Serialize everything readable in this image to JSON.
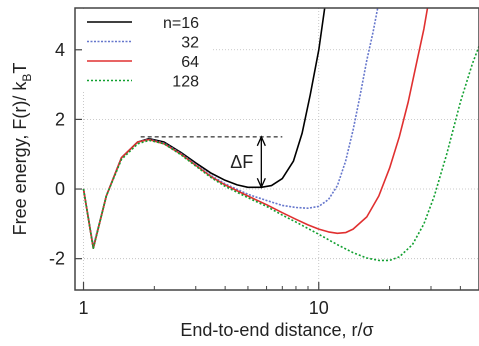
{
  "chart_data": {
    "type": "line",
    "xlabel": "End-to-end distance, r/σ",
    "ylabel_main": "Free energy, F(r)/ k",
    "ylabel_sub": "B",
    "ylabel_tail": "T",
    "x_scale": "log",
    "xlim": [
      0.92,
      48
    ],
    "ylim": [
      -2.9,
      5.2
    ],
    "x_ticks": [
      {
        "value": 1,
        "label": "1"
      },
      {
        "value": 10,
        "label": "10"
      }
    ],
    "y_ticks": [
      {
        "value": -2,
        "label": "-2"
      },
      {
        "value": 0,
        "label": "0"
      },
      {
        "value": 2,
        "label": "2"
      },
      {
        "value": 4,
        "label": "4"
      }
    ],
    "grid": true,
    "legend_position": "top-left",
    "annotation": {
      "label": "ΔF",
      "x_start": 1.75,
      "x_end": 7.0,
      "arrow_x": 5.7,
      "y_top": 1.5,
      "y_bottom": 0.05
    },
    "series": [
      {
        "name": "n=16",
        "color": "#000000",
        "dash": "none",
        "points": [
          [
            1.0,
            0
          ],
          [
            1.1,
            -1.7
          ],
          [
            1.25,
            -0.2
          ],
          [
            1.45,
            0.9
          ],
          [
            1.7,
            1.35
          ],
          [
            1.9,
            1.45
          ],
          [
            2.2,
            1.35
          ],
          [
            2.6,
            1.05
          ],
          [
            3.0,
            0.75
          ],
          [
            3.5,
            0.45
          ],
          [
            4.0,
            0.25
          ],
          [
            4.5,
            0.12
          ],
          [
            5.0,
            0.05
          ],
          [
            5.7,
            0.05
          ],
          [
            6.3,
            0.1
          ],
          [
            7.0,
            0.3
          ],
          [
            7.8,
            0.8
          ],
          [
            8.5,
            1.6
          ],
          [
            9.2,
            2.7
          ],
          [
            10.0,
            4.0
          ],
          [
            10.6,
            5.2
          ]
        ]
      },
      {
        "name": "32",
        "color": "#6677cc",
        "dash": "2,1.5",
        "points": [
          [
            1.0,
            0
          ],
          [
            1.1,
            -1.65
          ],
          [
            1.25,
            -0.2
          ],
          [
            1.45,
            0.9
          ],
          [
            1.7,
            1.35
          ],
          [
            1.9,
            1.43
          ],
          [
            2.2,
            1.32
          ],
          [
            2.6,
            1.02
          ],
          [
            3.0,
            0.7
          ],
          [
            3.5,
            0.38
          ],
          [
            4.0,
            0.15
          ],
          [
            5.0,
            -0.15
          ],
          [
            6.0,
            -0.33
          ],
          [
            7.0,
            -0.47
          ],
          [
            8.0,
            -0.53
          ],
          [
            9.0,
            -0.55
          ],
          [
            10.0,
            -0.5
          ],
          [
            11.0,
            -0.3
          ],
          [
            12.0,
            0.1
          ],
          [
            13.0,
            0.8
          ],
          [
            14.0,
            1.7
          ],
          [
            15.0,
            2.7
          ],
          [
            16.0,
            3.7
          ],
          [
            17.0,
            4.5
          ],
          [
            17.8,
            5.2
          ]
        ]
      },
      {
        "name": "64",
        "color": "#e03030",
        "dash": "none",
        "points": [
          [
            1.0,
            0
          ],
          [
            1.1,
            -1.7
          ],
          [
            1.25,
            -0.2
          ],
          [
            1.45,
            0.9
          ],
          [
            1.7,
            1.35
          ],
          [
            1.9,
            1.42
          ],
          [
            2.2,
            1.3
          ],
          [
            2.6,
            1.0
          ],
          [
            3.0,
            0.68
          ],
          [
            3.5,
            0.35
          ],
          [
            4.0,
            0.12
          ],
          [
            5.0,
            -0.2
          ],
          [
            6.0,
            -0.45
          ],
          [
            7.0,
            -0.68
          ],
          [
            8.0,
            -0.87
          ],
          [
            9.0,
            -1.03
          ],
          [
            10.0,
            -1.15
          ],
          [
            11.0,
            -1.23
          ],
          [
            12.0,
            -1.27
          ],
          [
            13.0,
            -1.25
          ],
          [
            14.0,
            -1.15
          ],
          [
            16.0,
            -0.8
          ],
          [
            18.0,
            -0.2
          ],
          [
            20.0,
            0.6
          ],
          [
            22.0,
            1.5
          ],
          [
            24.0,
            2.5
          ],
          [
            26.0,
            3.6
          ],
          [
            28.0,
            4.6
          ],
          [
            29.0,
            5.2
          ]
        ]
      },
      {
        "name": "128",
        "color": "#11a030",
        "dash": "2,2",
        "points": [
          [
            1.0,
            0
          ],
          [
            1.1,
            -1.7
          ],
          [
            1.25,
            -0.2
          ],
          [
            1.45,
            0.85
          ],
          [
            1.7,
            1.3
          ],
          [
            1.9,
            1.4
          ],
          [
            2.2,
            1.3
          ],
          [
            2.6,
            0.98
          ],
          [
            3.0,
            0.66
          ],
          [
            3.5,
            0.32
          ],
          [
            4.0,
            0.08
          ],
          [
            5.0,
            -0.25
          ],
          [
            6.0,
            -0.5
          ],
          [
            7.0,
            -0.75
          ],
          [
            8.0,
            -0.95
          ],
          [
            10.0,
            -1.3
          ],
          [
            12.0,
            -1.6
          ],
          [
            14.0,
            -1.83
          ],
          [
            16.0,
            -1.98
          ],
          [
            18.0,
            -2.05
          ],
          [
            20.0,
            -2.05
          ],
          [
            22.0,
            -1.95
          ],
          [
            25.0,
            -1.6
          ],
          [
            28.0,
            -1.0
          ],
          [
            31.0,
            -0.2
          ],
          [
            35.0,
            1.0
          ],
          [
            40.0,
            2.5
          ],
          [
            45.0,
            3.6
          ],
          [
            48.0,
            4.1
          ]
        ]
      }
    ]
  }
}
